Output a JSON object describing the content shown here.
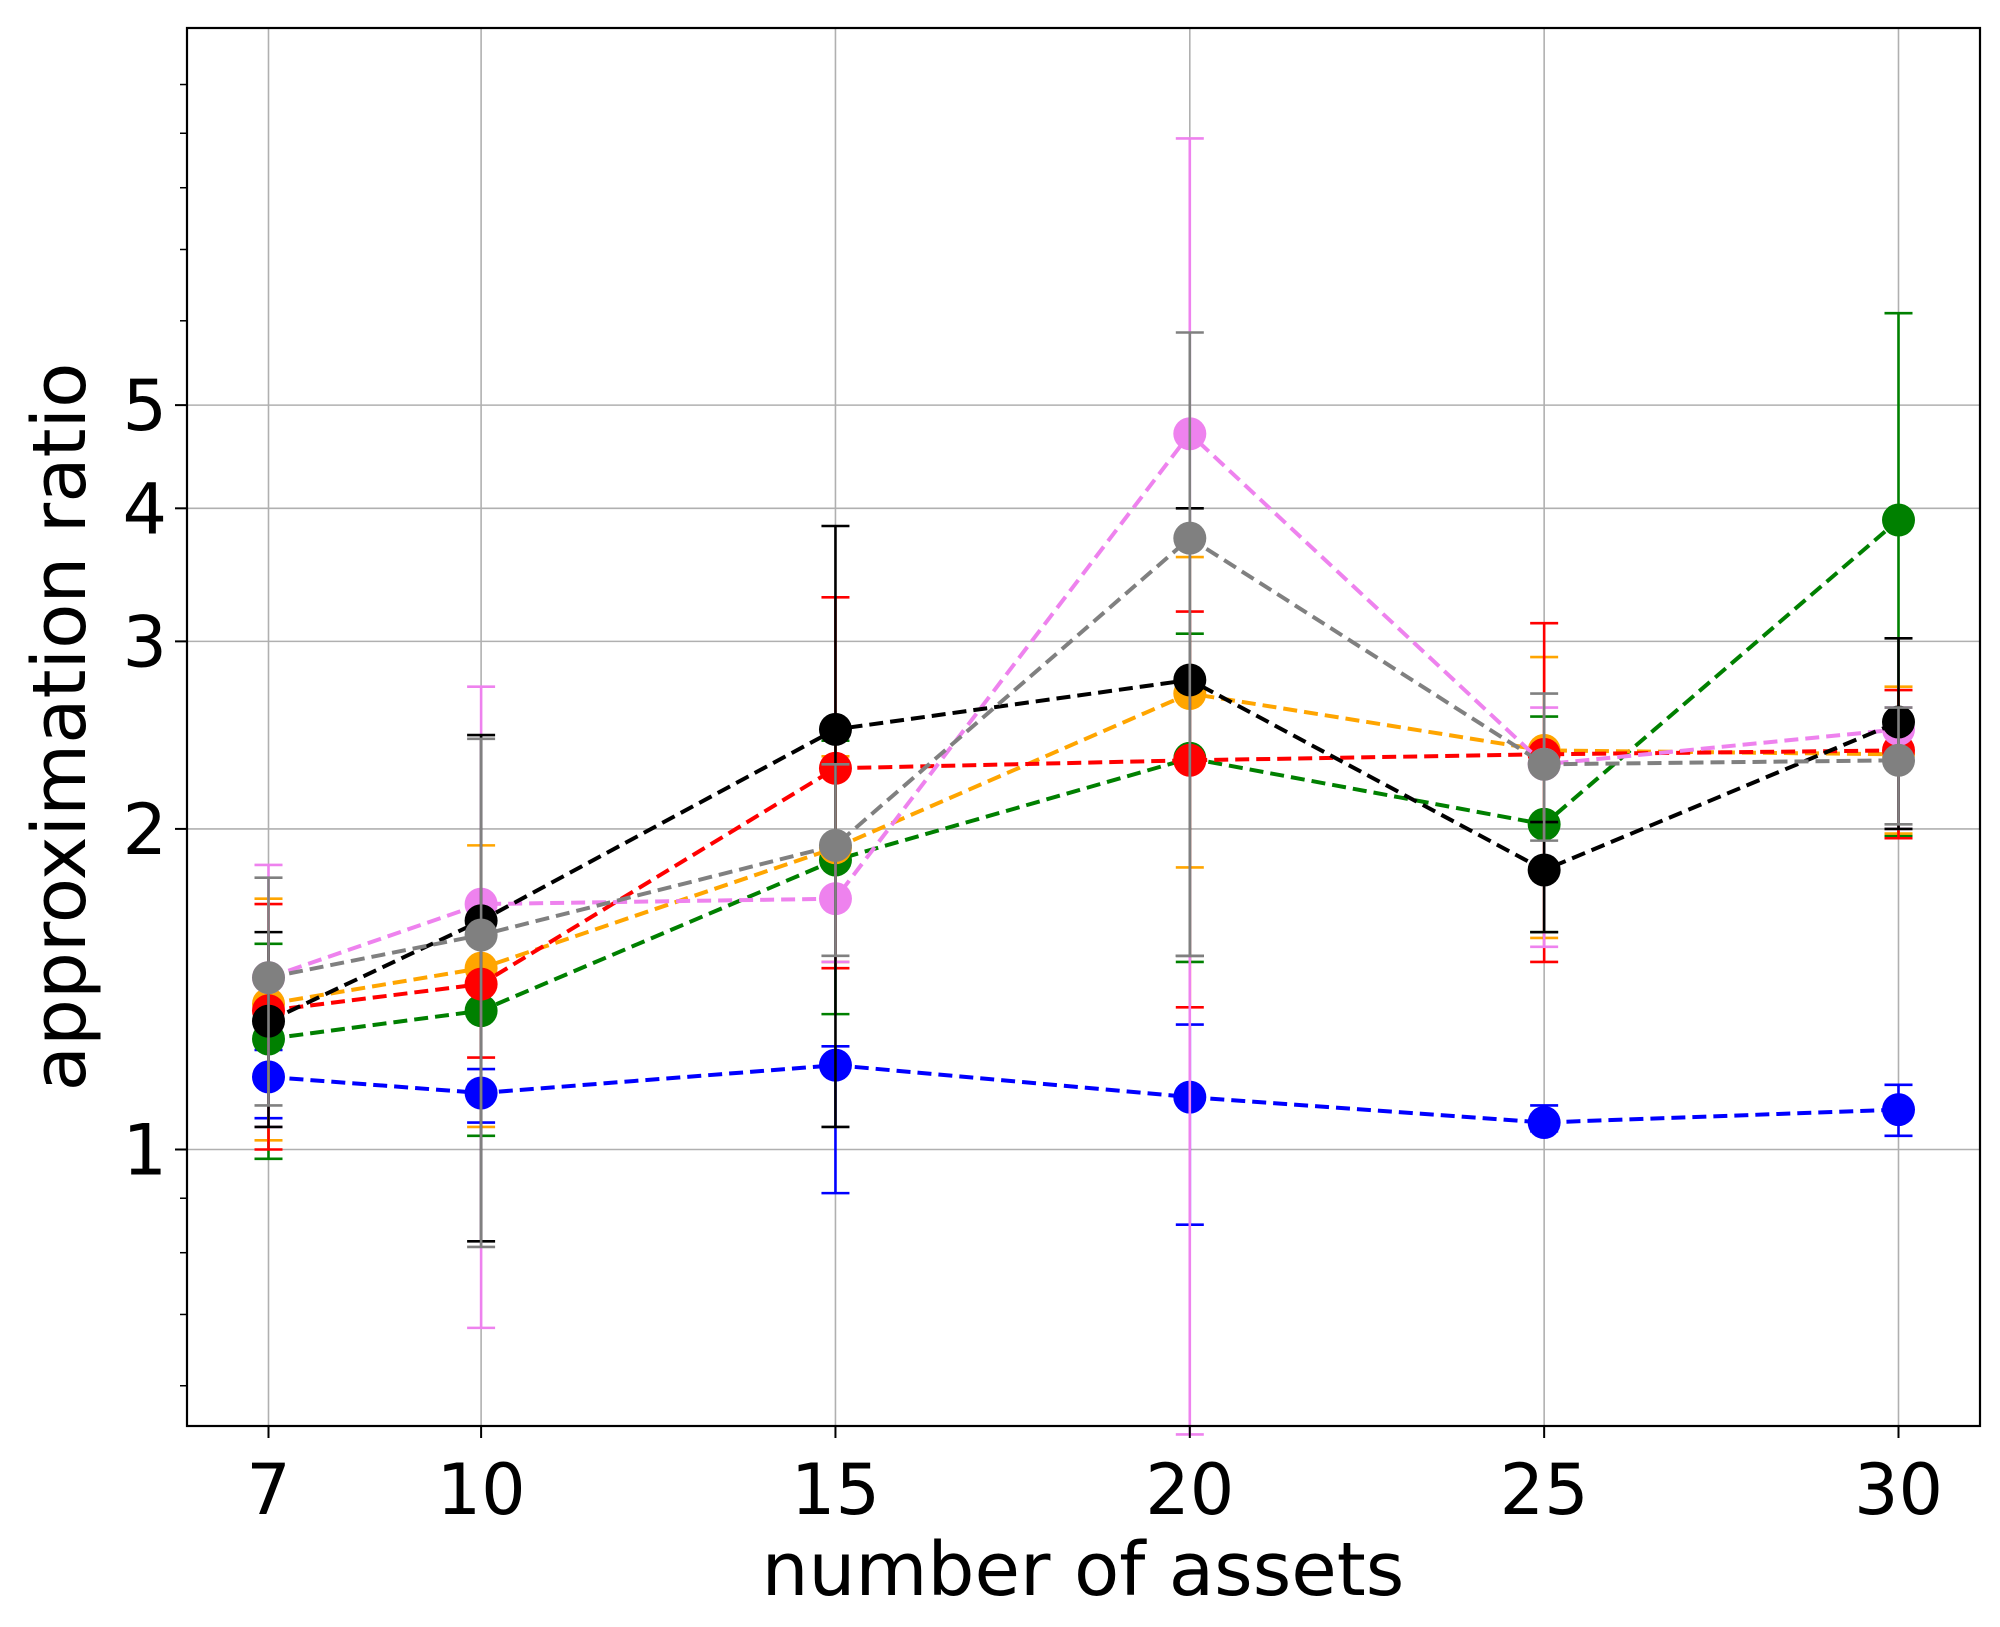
{
  "chart_data": {
    "type": "line",
    "title": "",
    "xlabel": "number of assets",
    "ylabel": "approximation ratio",
    "xlim": [
      5.85,
      31.15
    ],
    "ylim": [
      0.55,
      11.3
    ],
    "yscale": "log",
    "grid": true,
    "x": [
      7,
      10,
      15,
      20,
      25,
      30
    ],
    "x_ticks": [
      7,
      10,
      15,
      20,
      25,
      30
    ],
    "x_tick_labels": [
      "7",
      "10",
      "15",
      "20",
      "25",
      "30"
    ],
    "y_major_ticks": [
      1,
      2,
      3,
      4,
      5
    ],
    "y_tick_labels": [
      "1",
      "2",
      "3",
      "4",
      "5"
    ],
    "y_minor_ticks": [
      0.6,
      0.7,
      0.8,
      0.9,
      6,
      7,
      8,
      9,
      10
    ],
    "series": [
      {
        "name": "blue",
        "color": "#0000ff",
        "values": [
          1.17,
          1.13,
          1.2,
          1.12,
          1.06,
          1.09
        ],
        "err_low": [
          1.07,
          1.06,
          0.91,
          0.85,
          1.04,
          1.03
        ],
        "err_high": [
          1.24,
          1.19,
          1.25,
          1.31,
          1.1,
          1.15
        ]
      },
      {
        "name": "green",
        "color": "#008000",
        "values": [
          1.27,
          1.35,
          1.87,
          2.33,
          2.02,
          3.9
        ],
        "err_low": [
          0.98,
          1.03,
          1.34,
          1.5,
          1.6,
          1.97
        ],
        "err_high": [
          1.56,
          1.66,
          2.42,
          3.05,
          2.55,
          6.1
        ]
      },
      {
        "name": "orange",
        "color": "#ffa500",
        "values": [
          1.37,
          1.48,
          1.92,
          2.68,
          2.37,
          2.35
        ],
        "err_low": [
          1.02,
          1.05,
          1.5,
          1.84,
          1.58,
          1.98
        ],
        "err_high": [
          1.72,
          1.93,
          2.34,
          3.6,
          2.9,
          2.72
        ]
      },
      {
        "name": "red",
        "color": "#ff0000",
        "values": [
          1.35,
          1.43,
          2.28,
          2.32,
          2.35,
          2.37
        ],
        "err_low": [
          1.0,
          1.22,
          1.48,
          1.36,
          1.5,
          1.96
        ],
        "err_high": [
          1.7,
          1.64,
          3.3,
          3.2,
          3.12,
          2.7
        ]
      },
      {
        "name": "violet",
        "color": "#ee82ee",
        "values": [
          1.45,
          1.7,
          1.72,
          4.7,
          2.3,
          2.48
        ],
        "err_low": [
          1.05,
          0.68,
          1.5,
          0.54,
          1.55,
          2.0
        ],
        "err_high": [
          1.85,
          2.72,
          1.92,
          8.9,
          2.6,
          2.6
        ]
      },
      {
        "name": "black",
        "color": "#000000",
        "values": [
          1.32,
          1.64,
          2.48,
          2.76,
          1.83,
          2.52
        ],
        "err_low": [
          1.05,
          0.82,
          1.05,
          1.52,
          1.6,
          2.0
        ],
        "err_high": [
          1.6,
          2.45,
          3.85,
          4.0,
          2.03,
          3.02
        ]
      },
      {
        "name": "gray",
        "color": "#808080",
        "values": [
          1.45,
          1.59,
          1.93,
          3.75,
          2.3,
          2.32
        ],
        "err_low": [
          1.1,
          0.81,
          1.52,
          1.52,
          1.95,
          2.02
        ],
        "err_high": [
          1.8,
          2.43,
          2.3,
          5.85,
          2.68,
          2.6
        ]
      }
    ]
  }
}
